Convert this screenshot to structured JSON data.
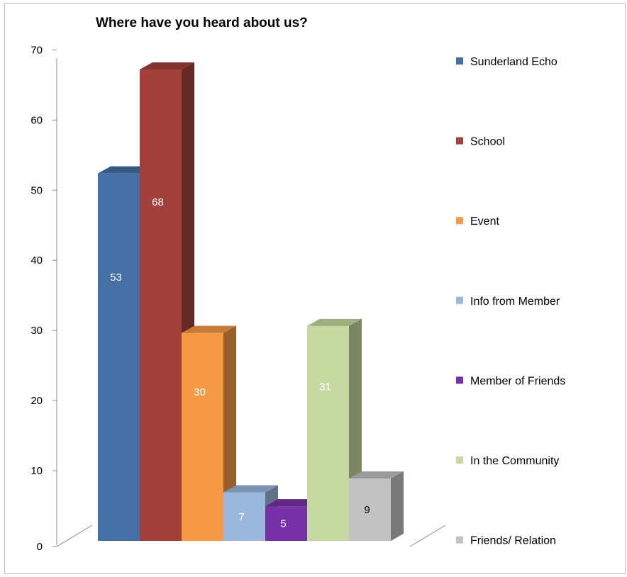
{
  "chart_data": {
    "type": "bar",
    "title": "Where have you heard about us?",
    "xlabel": "",
    "ylabel": "",
    "ylim": [
      0,
      70
    ],
    "yticks": [
      0,
      10,
      20,
      30,
      40,
      50,
      60,
      70
    ],
    "grid": false,
    "three_d": true,
    "legend_position": "right",
    "series": [
      {
        "name": "Sunderland Echo",
        "value": 53,
        "label": "53",
        "color": "#4470A6",
        "label_color": "#ffffff"
      },
      {
        "name": "School",
        "value": 68,
        "label": "68",
        "color": "#A2403C",
        "label_color": "#ffffff"
      },
      {
        "name": "Event",
        "value": 30,
        "label": "30",
        "color": "#F79A46",
        "label_color": "#ffffff"
      },
      {
        "name": "Info from Member",
        "value": 7,
        "label": "7",
        "color": "#9AB8DD",
        "label_color": "#ffffff"
      },
      {
        "name": "Member of Friends",
        "value": 5,
        "label": "5",
        "color": "#7531A5",
        "label_color": "#ffffff"
      },
      {
        "name": "In the Community",
        "value": 31,
        "label": "31",
        "color": "#C6D9A0",
        "label_color": "#ffffff"
      },
      {
        "name": "Friends/ Relation",
        "value": 9,
        "label": "9",
        "color": "#C2C2C2",
        "label_color": "#000000"
      }
    ]
  }
}
